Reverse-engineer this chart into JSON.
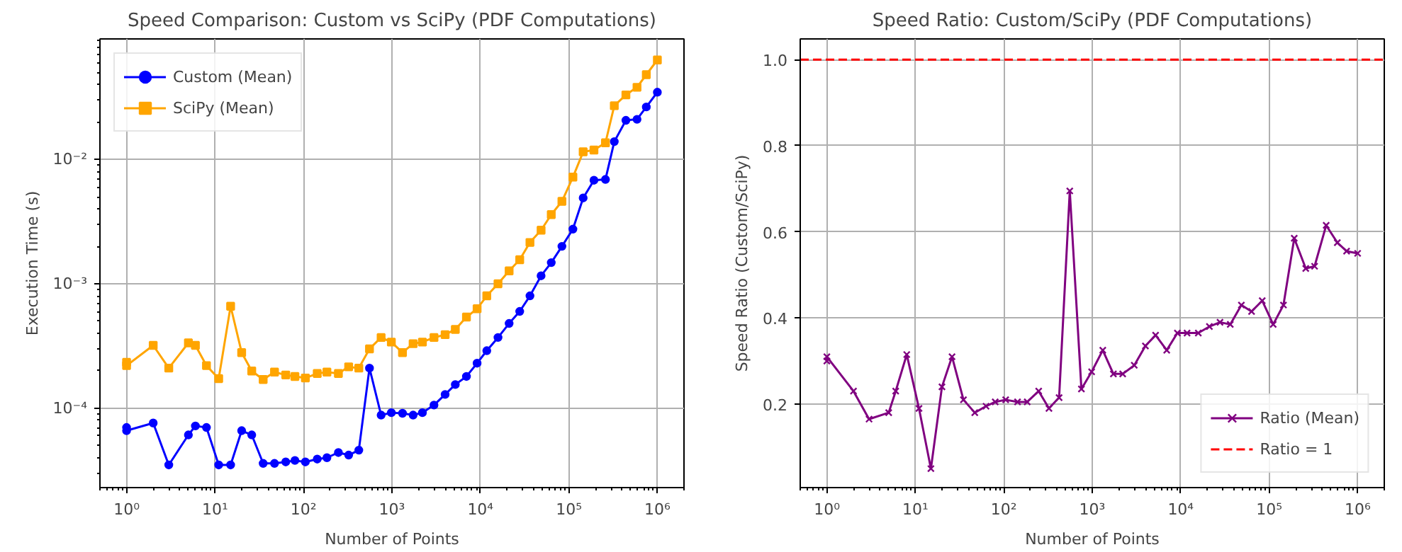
{
  "chart_data": [
    {
      "type": "line",
      "title": "Speed Comparison: Custom vs SciPy (PDF Computations)",
      "xlabel": "Number of Points",
      "ylabel": "Execution Time (s)",
      "log": "xy",
      "grid": true,
      "legend": "top left",
      "x": [
        1,
        1,
        2,
        3,
        5,
        6,
        8,
        11,
        15,
        20,
        26,
        35,
        47,
        63,
        80,
        105,
        143,
        184,
        248,
        324,
        422,
        557,
        754,
        984,
        1315,
        1734,
        2208,
        2985,
        3990,
        5200,
        6950,
        9170,
        11800,
        15800,
        21100,
        27800,
        36300,
        48500,
        63200,
        83400,
        111000,
        145000,
        192000,
        259000,
        326000,
        441000,
        589000,
        750000,
        1000000
      ],
      "xlim": [
        0.5,
        2000000
      ],
      "xticks": [
        {
          "value": 1,
          "label": "10⁰"
        },
        {
          "value": 10,
          "label": "10¹"
        },
        {
          "value": 100,
          "label": "10²"
        },
        {
          "value": 1000,
          "label": "10³"
        },
        {
          "value": 10000,
          "label": "10⁴"
        },
        {
          "value": 100000,
          "label": "10⁵"
        },
        {
          "value": 1000000,
          "label": "10⁶"
        }
      ],
      "ylim": [
        2.3e-05,
        0.093
      ],
      "yticks": [
        {
          "value": 0.0001,
          "label": "10⁻⁴"
        },
        {
          "value": 0.001,
          "label": "10⁻³"
        },
        {
          "value": 0.01,
          "label": "10⁻²"
        }
      ],
      "series": [
        {
          "name": "Custom (Mean)",
          "color": "#0000ff",
          "marker": "circle",
          "values": [
            7e-05,
            6.6e-05,
            7.6e-05,
            3.5e-05,
            6.1e-05,
            7.2e-05,
            7e-05,
            3.5e-05,
            3.5e-05,
            6.6e-05,
            6.1e-05,
            3.6e-05,
            3.6e-05,
            3.7e-05,
            3.8e-05,
            3.7e-05,
            3.9e-05,
            4e-05,
            4.4e-05,
            4.2e-05,
            4.6e-05,
            0.00021,
            8.8e-05,
            9.2e-05,
            9.1e-05,
            8.8e-05,
            9.2e-05,
            0.000106,
            0.000129,
            0.000155,
            0.00018,
            0.00023,
            0.00029,
            0.00037,
            0.00048,
            0.0006,
            0.0008,
            0.00116,
            0.00148,
            0.002,
            0.00275,
            0.0049,
            0.0068,
            0.0069,
            0.0139,
            0.0206,
            0.021,
            0.0264,
            0.0347
          ]
        },
        {
          "name": "SciPy (Mean)",
          "color": "#ffa500",
          "marker": "square",
          "values": [
            0.000234,
            0.00022,
            0.00032,
            0.00021,
            0.000335,
            0.00032,
            0.00022,
            0.000173,
            0.00066,
            0.00028,
            0.000199,
            0.00017,
            0.000195,
            0.000185,
            0.00018,
            0.000175,
            0.00019,
            0.000195,
            0.00019,
            0.000215,
            0.00021,
            0.0003,
            0.00037,
            0.00034,
            0.00028,
            0.00033,
            0.00034,
            0.00037,
            0.00039,
            0.00043,
            0.00054,
            0.00063,
            0.0008,
            0.001,
            0.00127,
            0.00156,
            0.00215,
            0.0027,
            0.0036,
            0.0046,
            0.0072,
            0.0115,
            0.0119,
            0.0136,
            0.027,
            0.033,
            0.038,
            0.048,
            0.063
          ]
        }
      ]
    },
    {
      "type": "line",
      "title": "Speed Ratio: Custom/SciPy (PDF Computations)",
      "xlabel": "Number of Points",
      "ylabel": "Speed Ratio (Custom/SciPy)",
      "log": "x",
      "grid": true,
      "legend": "bottom right",
      "x": [
        1,
        1,
        2,
        3,
        5,
        6,
        8,
        11,
        15,
        20,
        26,
        35,
        47,
        63,
        80,
        105,
        143,
        184,
        248,
        324,
        422,
        557,
        754,
        984,
        1315,
        1734,
        2208,
        2985,
        3990,
        5200,
        6950,
        9170,
        11800,
        15800,
        21100,
        27800,
        36300,
        48500,
        63200,
        83400,
        111000,
        145000,
        192000,
        259000,
        326000,
        441000,
        589000,
        750000,
        1000000
      ],
      "xlim": [
        0.5,
        2000000
      ],
      "xticks": [
        {
          "value": 1,
          "label": "10⁰"
        },
        {
          "value": 10,
          "label": "10¹"
        },
        {
          "value": 100,
          "label": "10²"
        },
        {
          "value": 1000,
          "label": "10³"
        },
        {
          "value": 10000,
          "label": "10⁴"
        },
        {
          "value": 100000,
          "label": "10⁵"
        },
        {
          "value": 1000000,
          "label": "10⁶"
        }
      ],
      "ylim": [
        0.006,
        1.048
      ],
      "yticks": [
        {
          "value": 0.2,
          "label": "0.2"
        },
        {
          "value": 0.4,
          "label": "0.4"
        },
        {
          "value": 0.6,
          "label": "0.6"
        },
        {
          "value": 0.8,
          "label": "0.8"
        },
        {
          "value": 1.0,
          "label": "1.0"
        }
      ],
      "series": [
        {
          "name": "Ratio (Mean)",
          "color": "#800080",
          "marker": "cross",
          "values": [
            0.3,
            0.31,
            0.23,
            0.165,
            0.18,
            0.23,
            0.315,
            0.19,
            0.05,
            0.24,
            0.31,
            0.21,
            0.18,
            0.195,
            0.205,
            0.21,
            0.205,
            0.205,
            0.23,
            0.19,
            0.215,
            0.695,
            0.235,
            0.275,
            0.325,
            0.27,
            0.27,
            0.29,
            0.335,
            0.36,
            0.325,
            0.365,
            0.365,
            0.365,
            0.38,
            0.39,
            0.385,
            0.43,
            0.415,
            0.44,
            0.385,
            0.43,
            0.585,
            0.515,
            0.52,
            0.615,
            0.575,
            0.555,
            0.55
          ]
        }
      ],
      "ref_lines": [
        {
          "axis": "y",
          "value": 1.0,
          "label": "Ratio = 1",
          "color": "#ff0000",
          "line_style": "dashed"
        }
      ]
    }
  ]
}
